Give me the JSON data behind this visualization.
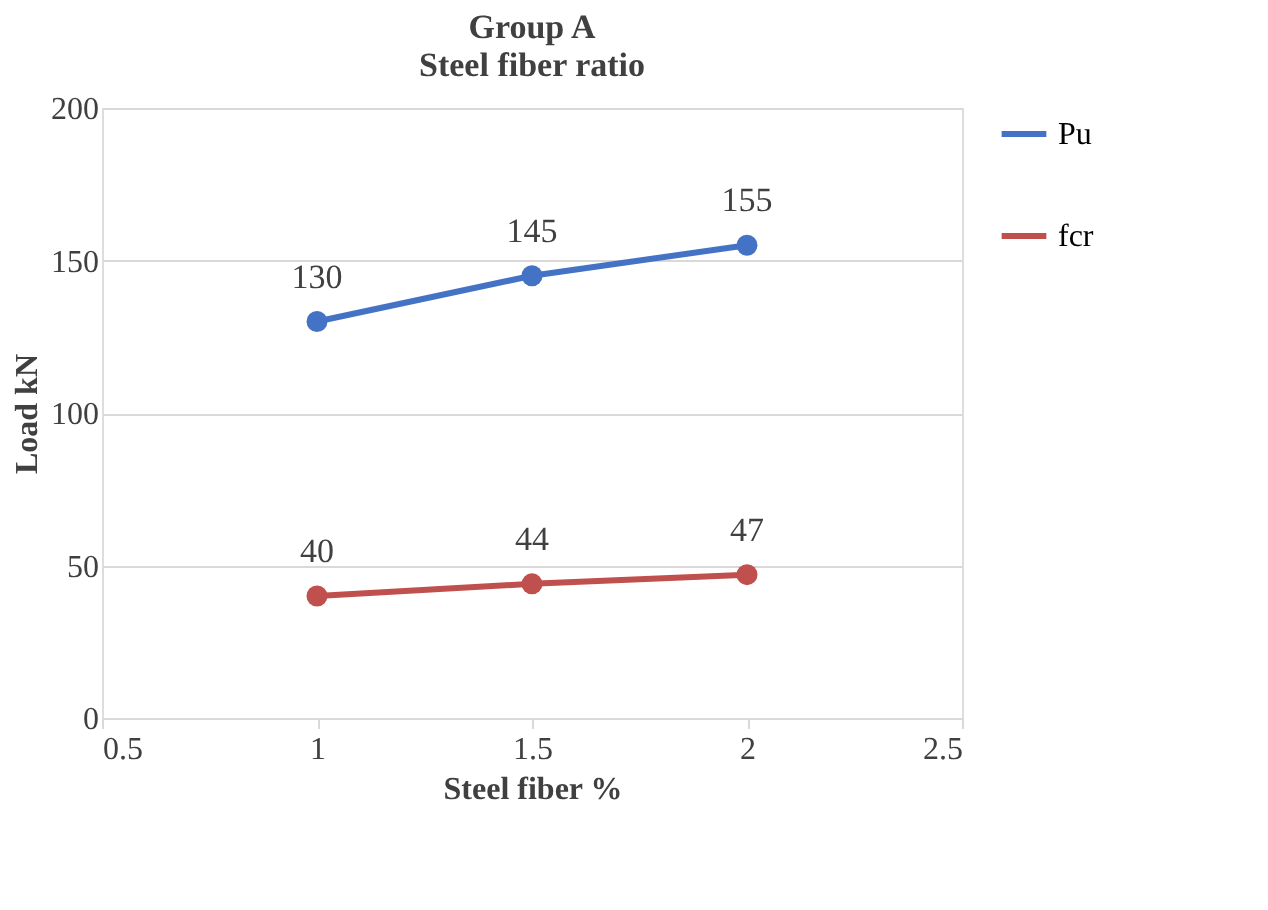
{
  "chart_data": {
    "type": "line",
    "title": "Group A",
    "subtitle": "Steel fiber ratio",
    "xlabel": "Steel fiber %",
    "ylabel": "Load kN",
    "x": [
      1,
      1.5,
      2
    ],
    "series": [
      {
        "name": "Pu",
        "color": "#4472c4",
        "values": [
          130,
          145,
          155
        ]
      },
      {
        "name": "fcr",
        "color": "#c0504d",
        "values": [
          40,
          44,
          47
        ]
      }
    ],
    "xlim": [
      0.5,
      2.5
    ],
    "xticks": [
      0.5,
      1,
      1.5,
      2,
      2.5
    ],
    "ylim": [
      0,
      200
    ],
    "yticks": [
      0,
      50,
      100,
      150,
      200
    ],
    "grid": "y",
    "legend": "right",
    "marker": "circle",
    "line_style": "solid",
    "data_labels": true
  }
}
